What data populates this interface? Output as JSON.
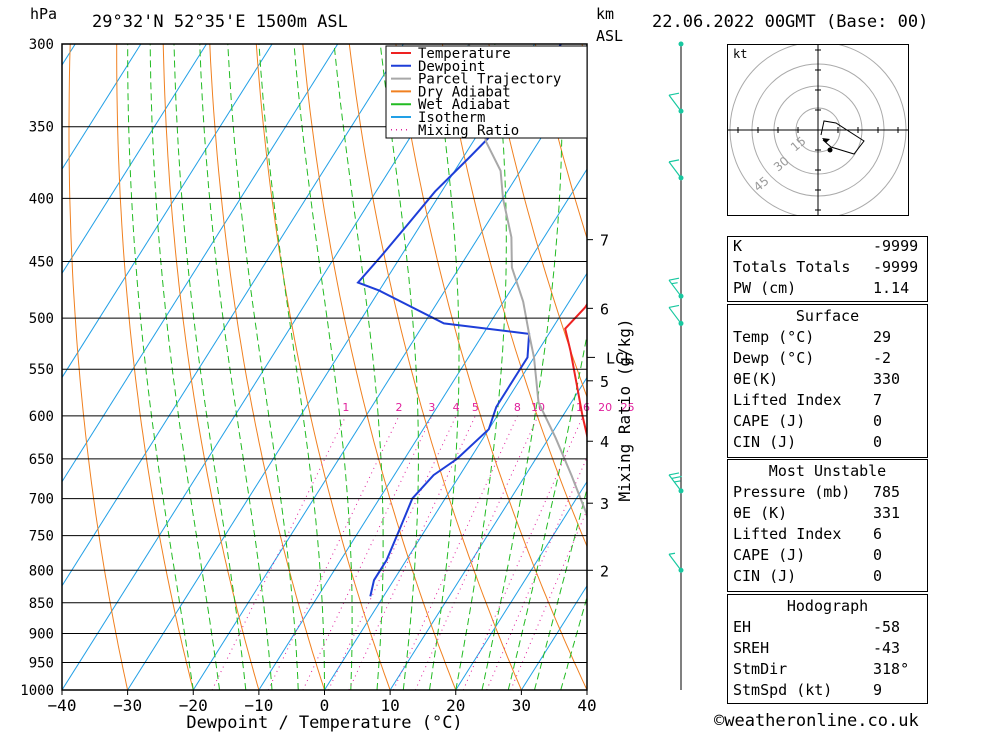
{
  "header": {
    "pressure_unit": "hPa",
    "location": "29°32'N  52°35'E  1500m  ASL",
    "km_label": "km",
    "asl_label": "ASL",
    "datetime": "22.06.2022  00GMT  (Base: 00)"
  },
  "chart_data": {
    "type": "line",
    "xlabel": "Dewpoint / Temperature (°C)",
    "ylabel": "Mixing Ratio (g/kg)",
    "x_ticks": [
      -40,
      -30,
      -20,
      -10,
      0,
      10,
      20,
      30,
      40
    ],
    "pressure_levels": [
      300,
      350,
      400,
      450,
      500,
      550,
      600,
      650,
      700,
      750,
      800,
      850,
      900,
      950,
      1000
    ],
    "xlim": [
      -40,
      40
    ],
    "ylim": [
      1000,
      300
    ],
    "y_scale": "log",
    "km_ticks": [
      {
        "label": "2",
        "p": 800
      },
      {
        "label": "3",
        "p": 706
      },
      {
        "label": "4",
        "p": 629
      },
      {
        "label": "5",
        "p": 562
      },
      {
        "label": "6",
        "p": 491
      },
      {
        "label": "7",
        "p": 432
      }
    ],
    "lcl": {
      "label": "LCL",
      "p": 538
    },
    "mixing_ratio_labels": [
      "1",
      "2",
      "3",
      "4",
      "5",
      "8",
      "10",
      "16",
      "20",
      "25"
    ],
    "legend": [
      "Temperature",
      "Dewpoint",
      "Parcel Trajectory",
      "Dry Adiabat",
      "Wet Adiabat",
      "Isotherm",
      "Mixing Ratio"
    ],
    "colors": {
      "temperature": "#ee2222",
      "dewpoint": "#1e3ed8",
      "parcel": "#a8a8a8",
      "dry_adiabat": "#f08020",
      "wet_adiabat": "#22bb22",
      "isotherm": "#22a0e6",
      "mixing_ratio": "#e0209c",
      "wind": "#18c8a0"
    },
    "series": [
      {
        "name": "Temperature",
        "points": [
          [
            35,
            830
          ],
          [
            29,
            785
          ],
          [
            27,
            740
          ],
          [
            24,
            700
          ],
          [
            21,
            670
          ],
          [
            17,
            635
          ],
          [
            13,
            600
          ],
          [
            9,
            565
          ],
          [
            5,
            532
          ],
          [
            2,
            510
          ],
          [
            3,
            490
          ],
          [
            3,
            470
          ],
          [
            2,
            445
          ],
          [
            -2,
            410
          ],
          [
            -6,
            375
          ],
          [
            -10,
            345
          ],
          [
            -14,
            320
          ],
          [
            -17,
            300
          ]
        ]
      },
      {
        "name": "Dewpoint",
        "points": [
          [
            -2,
            840
          ],
          [
            -3,
            815
          ],
          [
            -3,
            785
          ],
          [
            -4,
            740
          ],
          [
            -5,
            700
          ],
          [
            -4,
            670
          ],
          [
            -2,
            650
          ],
          [
            0,
            615
          ],
          [
            -1,
            590
          ],
          [
            -1,
            560
          ],
          [
            -1,
            538
          ],
          [
            -3,
            515
          ],
          [
            -17,
            505
          ],
          [
            -30,
            475
          ],
          [
            -34,
            468
          ],
          [
            -33,
            445
          ],
          [
            -32,
            420
          ],
          [
            -31,
            395
          ],
          [
            -29,
            370
          ],
          [
            -27,
            345
          ],
          [
            -26,
            320
          ],
          [
            -26,
            300
          ]
        ]
      },
      {
        "name": "Parcel Trajectory",
        "points": [
          [
            29,
            785
          ],
          [
            23,
            720
          ],
          [
            17,
            670
          ],
          [
            11,
            625
          ],
          [
            5,
            585
          ],
          [
            0,
            538
          ],
          [
            -3,
            515
          ],
          [
            -7,
            485
          ],
          [
            -12,
            455
          ],
          [
            -15,
            430
          ],
          [
            -20,
            400
          ],
          [
            -23,
            380
          ],
          [
            -28,
            360
          ],
          [
            -33,
            335
          ],
          [
            -38,
            310
          ],
          [
            -40,
            300
          ]
        ]
      }
    ],
    "wind_barbs": [
      {
        "p": 300,
        "speed_kt": 0
      },
      {
        "p": 340,
        "speed_kt": 10
      },
      {
        "p": 385,
        "speed_kt": 10
      },
      {
        "p": 480,
        "speed_kt": 15
      },
      {
        "p": 505,
        "speed_kt": 10
      },
      {
        "p": 690,
        "speed_kt": 25
      },
      {
        "p": 800,
        "speed_kt": 5
      }
    ]
  },
  "hodograph": {
    "unit": "kt",
    "ring_labels": [
      "15",
      "30",
      "45"
    ]
  },
  "indices": {
    "top": [
      {
        "label": "K",
        "value": "-9999"
      },
      {
        "label": "Totals Totals",
        "value": "-9999"
      },
      {
        "label": "PW (cm)",
        "value": "1.14"
      }
    ],
    "surface_title": "Surface",
    "surface": [
      {
        "label": "Temp (°C)",
        "value": "29"
      },
      {
        "label": "Dewp (°C)",
        "value": "-2"
      },
      {
        "label": "θE(K)",
        "value": "330"
      },
      {
        "label": "Lifted Index",
        "value": "7"
      },
      {
        "label": "CAPE (J)",
        "value": "0"
      },
      {
        "label": "CIN (J)",
        "value": "0"
      }
    ],
    "mu_title": "Most Unstable",
    "mu": [
      {
        "label": "Pressure (mb)",
        "value": "785"
      },
      {
        "label": "θE (K)",
        "value": "331"
      },
      {
        "label": "Lifted Index",
        "value": "6"
      },
      {
        "label": "CAPE (J)",
        "value": "0"
      },
      {
        "label": "CIN (J)",
        "value": "0"
      }
    ],
    "hodo_title": "Hodograph",
    "hodo": [
      {
        "label": "EH",
        "value": "-58"
      },
      {
        "label": "SREH",
        "value": "-43"
      },
      {
        "label": "StmDir",
        "value": "318°"
      },
      {
        "label": "StmSpd (kt)",
        "value": "9"
      }
    ]
  },
  "credit": "©weatheronline.co.uk"
}
